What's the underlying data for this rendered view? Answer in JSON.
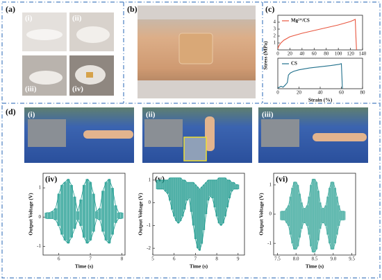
{
  "figure": {
    "panel_a": {
      "label": "(a)",
      "sub": [
        "(i)",
        "(ii)",
        "(iii)",
        "(iv)"
      ]
    },
    "panel_b": {
      "label": "(b)"
    },
    "panel_c": {
      "label": "(c)"
    },
    "panel_d": {
      "label": "(d)",
      "sub": [
        "(i)",
        "(ii)",
        "(iii)"
      ]
    }
  },
  "chart_data": [
    {
      "type": "line",
      "xlim": [
        0,
        140
      ],
      "xticks": [
        0,
        20,
        40,
        60,
        80,
        100,
        120,
        140
      ],
      "ylim": [
        0,
        5
      ],
      "yticks": [
        1,
        2,
        3,
        4
      ],
      "ylabel": "Stress (MPa)",
      "series": [
        {
          "name": "Mg²⁺/CS",
          "color": "#e8553e",
          "x": [
            0,
            2,
            5,
            10,
            20,
            40,
            60,
            80,
            100,
            120,
            128,
            129,
            130
          ],
          "values": [
            0.2,
            0.6,
            1.0,
            1.4,
            1.9,
            2.4,
            2.8,
            3.2,
            3.6,
            4.1,
            4.4,
            2.0,
            0
          ]
        }
      ]
    },
    {
      "type": "line",
      "xlim": [
        0,
        80
      ],
      "xticks": [
        0,
        20,
        40,
        60,
        80
      ],
      "ylim": [
        0,
        1
      ],
      "xlabel": "Strain (%)",
      "series": [
        {
          "name": "CS",
          "color": "#1f6f8b",
          "x": [
            0,
            3,
            5,
            7,
            9,
            10,
            12,
            15,
            20,
            30,
            40,
            50,
            58,
            60,
            61
          ],
          "values": [
            0.02,
            0.08,
            0.05,
            0.12,
            0.2,
            0.45,
            0.52,
            0.57,
            0.62,
            0.68,
            0.72,
            0.76,
            0.8,
            0.82,
            0
          ]
        }
      ]
    },
    {
      "type": "band",
      "title": "(iv)",
      "xlabel": "Time (s)",
      "ylabel": "Output Voltage (V)",
      "xlim": [
        5.5,
        8.1
      ],
      "xticks": [
        6,
        7,
        8
      ],
      "ylim": [
        -1.3,
        1.5
      ],
      "yticks": [
        -1,
        0,
        1
      ],
      "x": [
        5.6,
        5.7,
        5.8,
        5.9,
        6.0,
        6.1,
        6.2,
        6.3,
        6.4,
        6.5,
        6.6,
        6.7,
        6.8,
        6.9,
        7.0,
        7.1,
        7.2,
        7.3,
        7.4,
        7.5,
        7.6,
        7.7,
        7.8,
        7.9,
        8.0
      ],
      "series": [
        {
          "color": "#1a9a8e",
          "values": [
            0.15,
            0.15,
            0.2,
            0.3,
            0.8,
            1.1,
            1.2,
            1.3,
            1.1,
            0.7,
            0.2,
            0.6,
            1.1,
            1.3,
            1.2,
            0.8,
            0.2,
            0.3,
            0.9,
            1.2,
            1.3,
            1.0,
            0.4,
            0.15,
            0.15
          ]
        },
        {
          "color": "#1a9a8e",
          "values": [
            -0.05,
            -0.05,
            -0.05,
            -0.1,
            -0.3,
            -0.6,
            -0.8,
            -0.9,
            -0.7,
            -0.4,
            -0.1,
            -0.3,
            -0.7,
            -0.9,
            -0.8,
            -0.5,
            -0.05,
            -0.1,
            -0.5,
            -0.8,
            -0.9,
            -0.6,
            -0.2,
            -0.05,
            -0.05
          ]
        }
      ]
    },
    {
      "type": "band",
      "title": "(v)",
      "xlabel": "Time (s)",
      "ylabel": "Output Voltage (V)",
      "xlim": [
        5,
        9.3
      ],
      "xticks": [
        5,
        6,
        7,
        8,
        9
      ],
      "ylim": [
        -2.3,
        1.3
      ],
      "yticks": [
        -2,
        -1,
        0,
        1
      ],
      "x": [
        5.2,
        5.3,
        5.4,
        5.5,
        5.6,
        5.7,
        5.8,
        5.9,
        6.0,
        6.1,
        6.2,
        6.3,
        6.4,
        6.5,
        6.6,
        6.7,
        6.8,
        6.9,
        7.0,
        7.1,
        7.2,
        7.3,
        7.4,
        7.5,
        7.6,
        7.7,
        7.8,
        7.9,
        8.0,
        8.1,
        8.2,
        8.3,
        8.4,
        8.5,
        8.6,
        8.7,
        8.8,
        8.9,
        9.0
      ],
      "series": [
        {
          "color": "#16968a",
          "values": [
            1.0,
            1.0,
            1.0,
            1.0,
            1.0,
            1.0,
            1.1,
            1.1,
            1.1,
            1.1,
            1.1,
            1.1,
            1.0,
            1.0,
            0.9,
            0.9,
            0.9,
            0.9,
            0.8,
            0.7,
            0.6,
            0.7,
            0.8,
            0.9,
            1.0,
            1.0,
            1.0,
            1.0,
            1.0,
            1.1,
            1.1,
            1.1,
            1.1,
            1.0,
            1.0,
            0.9,
            0.9,
            0.8,
            0.8
          ]
        },
        {
          "color": "#16968a",
          "values": [
            0.6,
            0.6,
            0.6,
            0.6,
            0.5,
            0.4,
            0.1,
            -0.3,
            -0.6,
            -0.8,
            -0.9,
            -0.8,
            -0.6,
            -0.3,
            0.1,
            0.2,
            -0.4,
            -1.0,
            -1.6,
            -2.0,
            -2.1,
            -1.8,
            -1.2,
            -0.5,
            0.1,
            0.3,
            0.2,
            -0.2,
            -0.6,
            -0.9,
            -1.0,
            -0.9,
            -0.6,
            -0.2,
            0.2,
            0.5,
            0.6,
            0.6,
            0.6
          ]
        }
      ]
    },
    {
      "type": "band",
      "title": "(vi)",
      "xlabel": "Time (s)",
      "ylabel": "Output Voltage (V)",
      "xlim": [
        7.4,
        9.6
      ],
      "xticks": [
        7.5,
        {
          "value": 8,
          "label": "8.0"
        },
        8.5,
        {
          "value": 9,
          "label": "9.0"
        },
        9.5
      ],
      "ylim": [
        -1.4,
        1.4
      ],
      "yticks": [
        -1,
        0,
        1
      ],
      "x": [
        7.6,
        7.65,
        7.7,
        7.75,
        7.8,
        7.85,
        7.9,
        7.95,
        8.0,
        8.05,
        8.1,
        8.15,
        8.2,
        8.25,
        8.3,
        8.35,
        8.4,
        8.45,
        8.5,
        8.55,
        8.6,
        8.65,
        8.7,
        8.75,
        8.8,
        8.85,
        8.9,
        8.95,
        9.0,
        9.05,
        9.1,
        9.15,
        9.2,
        9.25,
        9.3
      ],
      "series": [
        {
          "color": "#3aa89c",
          "values": [
            0.1,
            0.1,
            0.1,
            0.2,
            0.3,
            0.6,
            0.9,
            1.1,
            1.1,
            1.0,
            0.7,
            0.4,
            0.2,
            0.2,
            0.3,
            0.6,
            1.0,
            1.2,
            1.2,
            1.1,
            0.8,
            0.4,
            0.2,
            0.2,
            0.3,
            0.6,
            0.9,
            1.1,
            1.1,
            0.9,
            0.6,
            0.3,
            0.1,
            0.1,
            0.1
          ]
        },
        {
          "color": "#3aa89c",
          "values": [
            -0.2,
            -0.2,
            -0.2,
            -0.3,
            -0.4,
            -0.7,
            -1.0,
            -1.2,
            -1.2,
            -1.1,
            -0.8,
            -0.5,
            -0.3,
            -0.3,
            -0.4,
            -0.7,
            -1.1,
            -1.3,
            -1.3,
            -1.2,
            -0.9,
            -0.5,
            -0.3,
            -0.3,
            -0.4,
            -0.7,
            -1.0,
            -1.2,
            -1.2,
            -1.0,
            -0.7,
            -0.4,
            -0.2,
            -0.2,
            -0.2
          ]
        }
      ]
    }
  ]
}
